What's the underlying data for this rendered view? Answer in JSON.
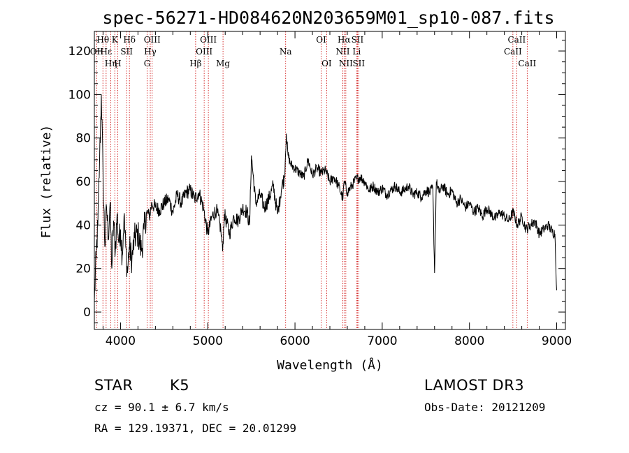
{
  "chart_data": {
    "type": "line",
    "title": "spec-56271-HD084620N203659M01_sp10-087.fits",
    "xlabel": "Wavelength (Å)",
    "ylabel": "Flux (relative)",
    "xlim": [
      3700,
      9100
    ],
    "ylim": [
      -8,
      129
    ],
    "xticks": [
      4000,
      5000,
      6000,
      7000,
      8000,
      9000
    ],
    "yticks": [
      0,
      20,
      40,
      60,
      80,
      100,
      120
    ],
    "grid": false,
    "series": [
      {
        "name": "flux",
        "x": [
          3700,
          3720,
          3740,
          3760,
          3780,
          3800,
          3820,
          3840,
          3860,
          3880,
          3900,
          3920,
          3940,
          3960,
          3980,
          4000,
          4020,
          4040,
          4060,
          4080,
          4100,
          4130,
          4160,
          4200,
          4240,
          4270,
          4300,
          4330,
          4360,
          4400,
          4450,
          4500,
          4550,
          4600,
          4650,
          4700,
          4750,
          4800,
          4850,
          4900,
          4950,
          5000,
          5050,
          5100,
          5150,
          5170,
          5190,
          5250,
          5300,
          5350,
          5400,
          5450,
          5480,
          5500,
          5550,
          5600,
          5650,
          5700,
          5750,
          5800,
          5850,
          5880,
          5900,
          5920,
          5950,
          6000,
          6050,
          6100,
          6150,
          6200,
          6250,
          6300,
          6350,
          6400,
          6450,
          6500,
          6550,
          6563,
          6600,
          6650,
          6700,
          6750,
          6800,
          6850,
          6900,
          6950,
          7000,
          7050,
          7100,
          7150,
          7200,
          7250,
          7300,
          7350,
          7400,
          7450,
          7500,
          7550,
          7580,
          7600,
          7620,
          7650,
          7700,
          7750,
          7800,
          7850,
          7900,
          7950,
          8000,
          8050,
          8100,
          8150,
          8200,
          8250,
          8300,
          8350,
          8400,
          8450,
          8500,
          8550,
          8600,
          8650,
          8700,
          8750,
          8800,
          8850,
          8900,
          8950,
          8980,
          9000
        ],
        "y": [
          5,
          25,
          40,
          70,
          100,
          62,
          30,
          48,
          35,
          50,
          20,
          42,
          28,
          45,
          32,
          38,
          26,
          44,
          30,
          18,
          30,
          24,
          34,
          36,
          28,
          38,
          46,
          44,
          50,
          48,
          47,
          50,
          52,
          46,
          54,
          50,
          55,
          56,
          52,
          55,
          48,
          36,
          44,
          47,
          38,
          28,
          45,
          36,
          44,
          42,
          48,
          46,
          40,
          72,
          50,
          54,
          48,
          52,
          58,
          45,
          58,
          62,
          82,
          72,
          68,
          66,
          64,
          62,
          70,
          63,
          66,
          64,
          65,
          60,
          62,
          58,
          52,
          60,
          55,
          58,
          61,
          62,
          60,
          56,
          58,
          55,
          57,
          54,
          56,
          58,
          55,
          56,
          58,
          54,
          55,
          53,
          56,
          55,
          57,
          18,
          60,
          55,
          58,
          54,
          56,
          50,
          52,
          48,
          50,
          46,
          48,
          44,
          48,
          45,
          43,
          46,
          44,
          42,
          46,
          40,
          44,
          38,
          40,
          42,
          36,
          38,
          40,
          37,
          36,
          10
        ]
      }
    ],
    "emission_lines": [
      {
        "label": "Hθ",
        "wavelength": 3798,
        "row": 1
      },
      {
        "label": "OII",
        "wavelength": 3727,
        "row": 2
      },
      {
        "label": "Hε",
        "wavelength": 3835,
        "row": 2
      },
      {
        "label": "Hη",
        "wavelength": 3889,
        "row": 3
      },
      {
        "label": "K",
        "wavelength": 3934,
        "row": 1
      },
      {
        "label": "H",
        "wavelength": 3968,
        "row": 3
      },
      {
        "label": "SII",
        "wavelength": 4070,
        "row": 2
      },
      {
        "label": "Hδ",
        "wavelength": 4102,
        "row": 1
      },
      {
        "label": "OIII",
        "wavelength": 4363,
        "row": 1
      },
      {
        "label": "Hγ",
        "wavelength": 4341,
        "row": 2
      },
      {
        "label": "G",
        "wavelength": 4305,
        "row": 3
      },
      {
        "label": "Hβ",
        "wavelength": 4861,
        "row": 3
      },
      {
        "label": "OIII",
        "wavelength": 5007,
        "row": 1
      },
      {
        "label": "OIII",
        "wavelength": 4959,
        "row": 2
      },
      {
        "label": "Mg",
        "wavelength": 5175,
        "row": 3
      },
      {
        "label": "Na",
        "wavelength": 5893,
        "row": 2
      },
      {
        "label": "OI",
        "wavelength": 6300,
        "row": 1
      },
      {
        "label": "OI",
        "wavelength": 6363,
        "row": 3
      },
      {
        "label": "Hα",
        "wavelength": 6563,
        "row": 1
      },
      {
        "label": "SII",
        "wavelength": 6716,
        "row": 1
      },
      {
        "label": "NII",
        "wavelength": 6548,
        "row": 2
      },
      {
        "label": "Li",
        "wavelength": 6707,
        "row": 2
      },
      {
        "label": "NII",
        "wavelength": 6583,
        "row": 3
      },
      {
        "label": "SII",
        "wavelength": 6731,
        "row": 3
      },
      {
        "label": "CaII",
        "wavelength": 8542,
        "row": 1
      },
      {
        "label": "CaII",
        "wavelength": 8498,
        "row": 2
      },
      {
        "label": "CaII",
        "wavelength": 8662,
        "row": 3
      }
    ]
  },
  "info": {
    "object_class": "STAR",
    "subclass": "K5",
    "survey": "LAMOST DR3",
    "cz": "cz = 90.1 ± 6.7 km/s",
    "obs_date": "Obs-Date: 20121209",
    "coords": "RA = 129.19371, DEC =  20.01299"
  },
  "colors": {
    "spectrum": "#000000",
    "line_markers": "#cc0000",
    "axes": "#000000"
  }
}
